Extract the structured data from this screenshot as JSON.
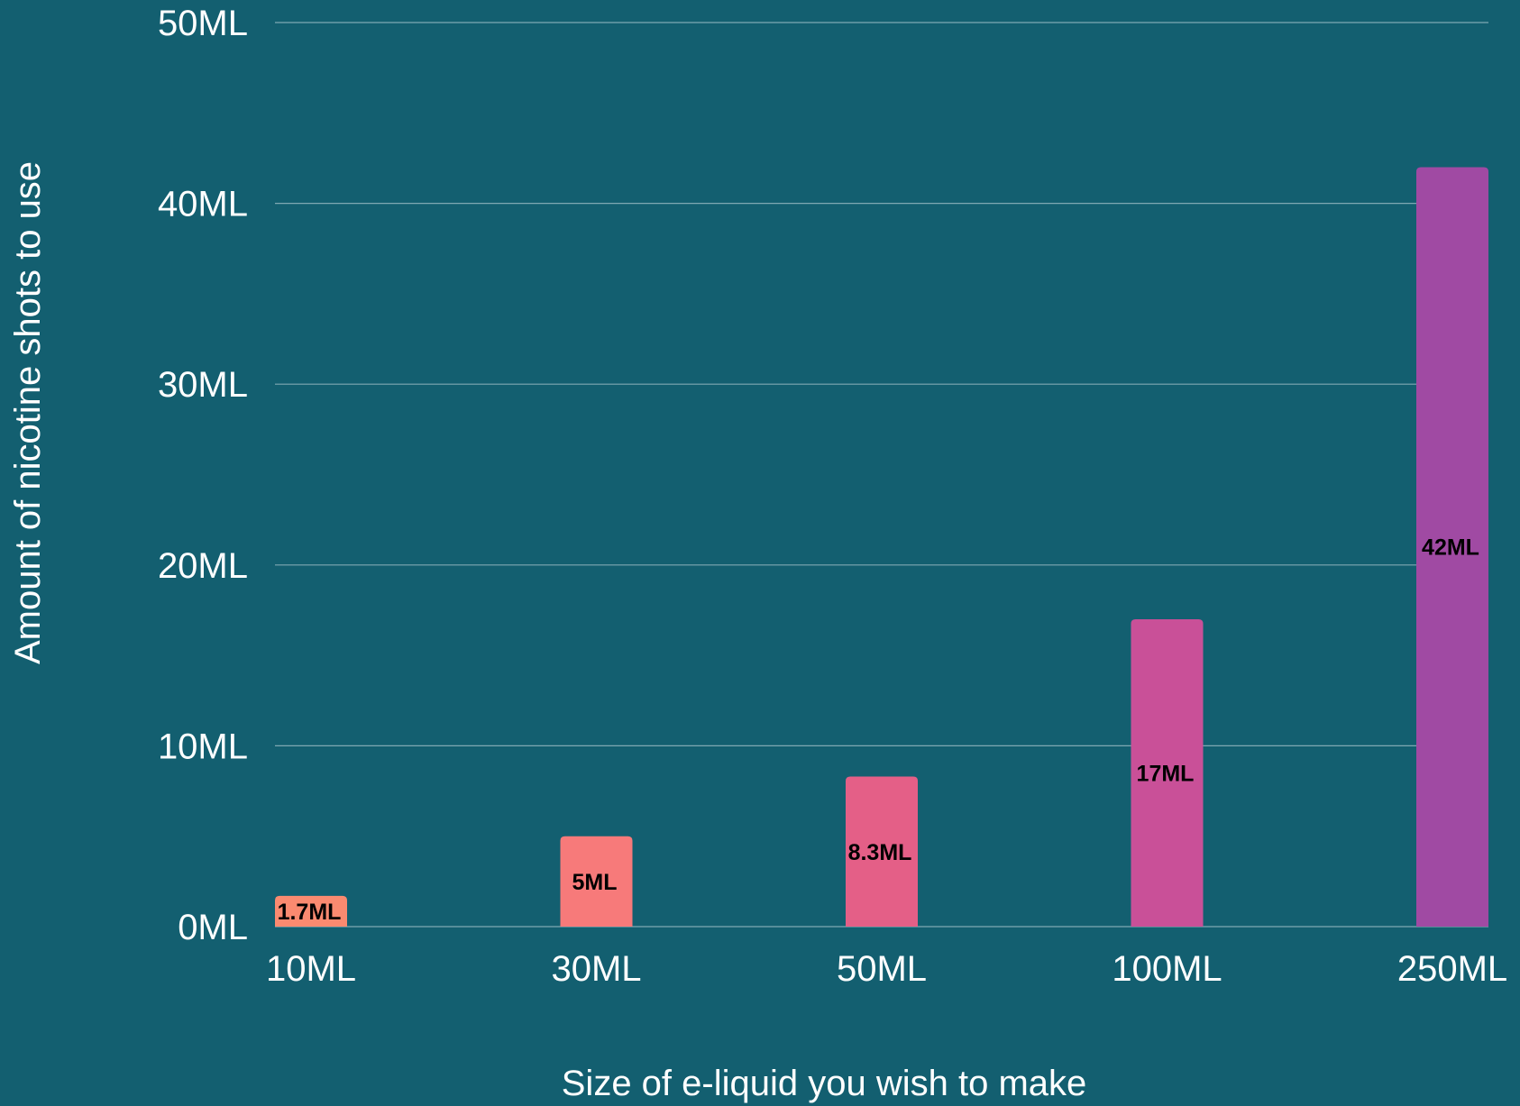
{
  "chart_data": {
    "type": "bar",
    "title": "",
    "xlabel": "Size of e-liquid you wish to make",
    "ylabel": "Amount of nicotine shots to use",
    "categories": [
      "10ML",
      "30ML",
      "50ML",
      "100ML",
      "250ML"
    ],
    "values": [
      1.7,
      5,
      8.3,
      17,
      42
    ],
    "data_labels": [
      "1.7ML",
      "5ML",
      "8.3ML",
      "17ML",
      "42ML"
    ],
    "y_ticks": [
      0,
      10,
      20,
      30,
      40,
      50
    ],
    "y_tick_labels": [
      "0ML",
      "10ML",
      "20ML",
      "30ML",
      "40ML",
      "50ML"
    ],
    "ylim": [
      0,
      50
    ],
    "grid": true,
    "legend": "none",
    "colors": {
      "background": "#135F70",
      "gridline": "#7FA9B3",
      "text": "#FFFFFF",
      "bars": [
        "#FA8A70",
        "#F77A7A",
        "#E45F87",
        "#C95098",
        "#A04AA3"
      ]
    }
  }
}
